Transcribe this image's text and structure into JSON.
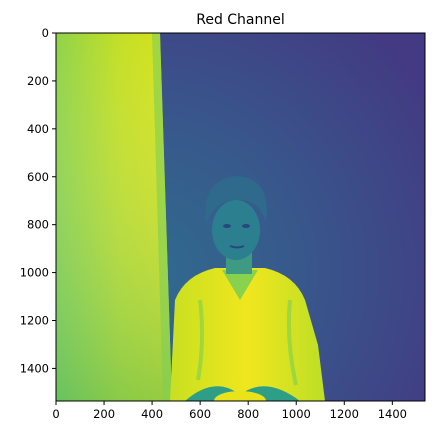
{
  "chart_data": {
    "type": "heatmap",
    "title": "Red Channel",
    "xlabel": "",
    "ylabel": "",
    "colormap": "viridis",
    "image_width": 1536,
    "image_height": 1536,
    "xlim": [
      0,
      1536
    ],
    "ylim": [
      1536,
      0
    ],
    "x_ticks": [
      0,
      200,
      400,
      600,
      800,
      1000,
      1200,
      1400
    ],
    "y_ticks": [
      0,
      200,
      400,
      600,
      800,
      1000,
      1200,
      1400
    ],
    "x_tick_labels": [
      "0",
      "200",
      "400",
      "600",
      "800",
      "1000",
      "1200",
      "1400"
    ],
    "y_tick_labels": [
      "0",
      "200",
      "400",
      "600",
      "800",
      "1000",
      "1200",
      "1400"
    ],
    "grid": false,
    "image_content": "photo of a seated person against a backdrop, rendered as single-channel intensity",
    "regions": [
      {
        "name": "bright-left-panel",
        "intensity": 0.82
      },
      {
        "name": "dark-backdrop",
        "intensity": 0.22
      },
      {
        "name": "shirt",
        "intensity": 0.9
      },
      {
        "name": "face",
        "intensity": 0.45
      },
      {
        "name": "hair",
        "intensity": 0.3
      }
    ],
    "colors": {
      "bright": "#b8de29",
      "mid": "#3a8b86",
      "dark": "#3a3f85",
      "darkest": "#440154"
    }
  }
}
